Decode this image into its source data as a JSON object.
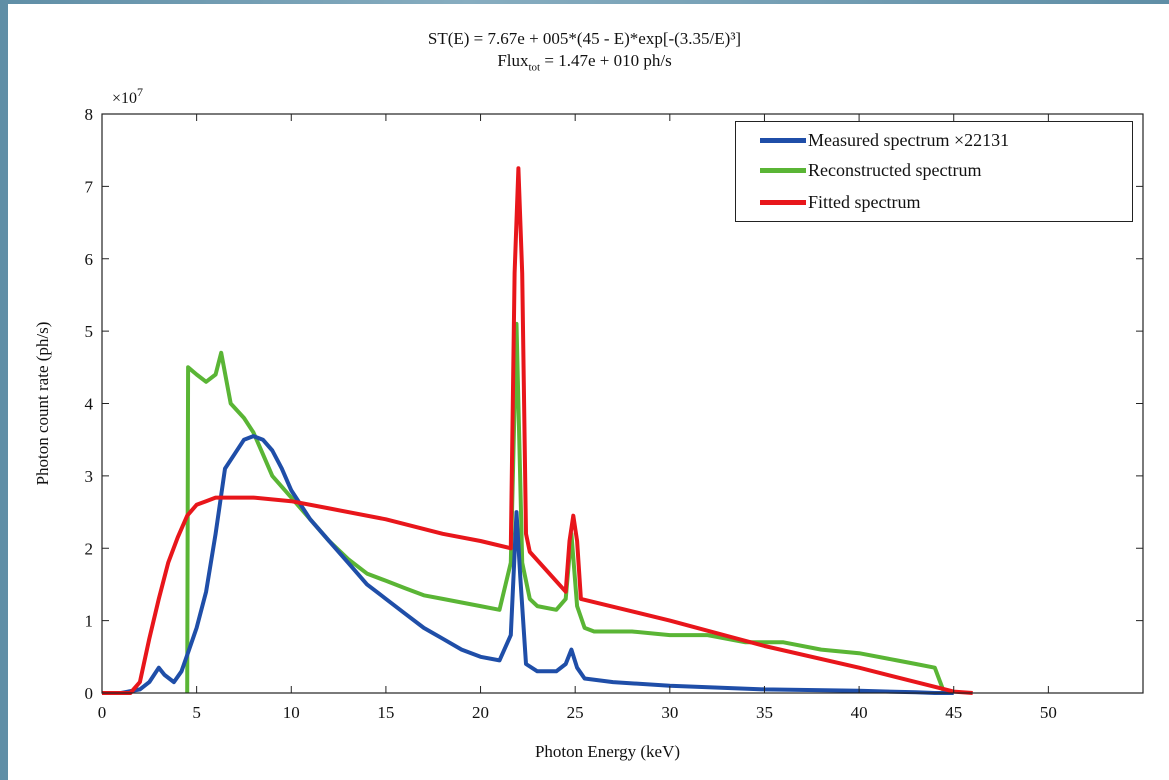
{
  "title_line1": "ST(E) = 7.67e + 005*(45 - E)*exp[-(3.35/E)³]",
  "title_line2_main": "Flux",
  "title_line2_sub": "tot",
  "title_line2_rest": " = 1.47e + 010 ph/s",
  "chart_data": {
    "type": "line",
    "title": "ST(E) = 7.67e + 005*(45 - E)*exp[-(3.35/E)³]  Flux_tot = 1.47e + 010 ph/s",
    "xlabel": "Photon Energy (keV)",
    "ylabel": "Photon count rate (ph/s)",
    "y_multiplier_label": "×10",
    "y_multiplier_exp": "7",
    "xlim": [
      0,
      55
    ],
    "ylim": [
      0,
      8
    ],
    "x_ticks": [
      0,
      5,
      10,
      15,
      20,
      25,
      30,
      35,
      40,
      45,
      50
    ],
    "y_ticks": [
      0,
      1,
      2,
      3,
      4,
      5,
      6,
      7,
      8
    ],
    "grid": false,
    "legend_position": "top-right",
    "series": [
      {
        "name": "Measured spectrum ×22131",
        "color": "#1f4ea8",
        "x": [
          0,
          1,
          2,
          2.5,
          3,
          3.3,
          3.8,
          4.2,
          4.6,
          5,
          5.5,
          6,
          6.5,
          7,
          7.5,
          8,
          8.5,
          9,
          9.5,
          10,
          11,
          12,
          13,
          14,
          15,
          16,
          17,
          18,
          19,
          20,
          21,
          21.6,
          21.9,
          22.1,
          22.4,
          23,
          24,
          24.5,
          24.8,
          25.1,
          25.5,
          27,
          30,
          35,
          40,
          43,
          44,
          45
        ],
        "y": [
          0,
          0,
          0.05,
          0.15,
          0.35,
          0.25,
          0.15,
          0.3,
          0.6,
          0.9,
          1.4,
          2.2,
          3.1,
          3.3,
          3.5,
          3.55,
          3.5,
          3.35,
          3.1,
          2.8,
          2.4,
          2.1,
          1.8,
          1.5,
          1.3,
          1.1,
          0.9,
          0.75,
          0.6,
          0.5,
          0.45,
          0.8,
          2.5,
          1.6,
          0.4,
          0.3,
          0.3,
          0.4,
          0.6,
          0.35,
          0.2,
          0.15,
          0.1,
          0.05,
          0.03,
          0.01,
          0,
          0
        ]
      },
      {
        "name": "Reconstructed spectrum",
        "color": "#5ab535",
        "x": [
          4.5,
          4.55,
          5,
          5.5,
          6,
          6.3,
          6.8,
          7.5,
          8,
          8.5,
          9,
          10,
          11,
          12,
          13,
          14,
          15,
          16,
          17,
          18,
          19,
          20,
          21,
          21.6,
          21.9,
          22.2,
          22.6,
          23,
          24,
          24.5,
          24.8,
          25.1,
          25.5,
          26,
          28,
          30,
          32,
          34,
          36,
          38,
          40,
          42,
          43,
          44,
          44.5
        ],
        "y": [
          0,
          4.5,
          4.4,
          4.3,
          4.4,
          4.7,
          4.0,
          3.8,
          3.6,
          3.3,
          3.0,
          2.7,
          2.4,
          2.1,
          1.85,
          1.65,
          1.55,
          1.45,
          1.35,
          1.3,
          1.25,
          1.2,
          1.15,
          1.8,
          5.1,
          1.8,
          1.3,
          1.2,
          1.15,
          1.3,
          2.2,
          1.2,
          0.9,
          0.85,
          0.85,
          0.8,
          0.8,
          0.7,
          0.7,
          0.6,
          0.55,
          0.45,
          0.4,
          0.35,
          0
        ]
      },
      {
        "name": "Fitted spectrum",
        "color": "#e8161b",
        "x": [
          0,
          1.5,
          2,
          2.5,
          3,
          3.5,
          4,
          4.5,
          5,
          5.5,
          6,
          7,
          8,
          10,
          12,
          15,
          18,
          20,
          21.6,
          21.8,
          22,
          22.2,
          22.4,
          22.6,
          24.5,
          24.7,
          24.9,
          25.1,
          25.3,
          30,
          35,
          40,
          45,
          46
        ],
        "y": [
          0,
          0,
          0.15,
          0.75,
          1.3,
          1.8,
          2.15,
          2.45,
          2.6,
          2.65,
          2.7,
          2.7,
          2.7,
          2.65,
          2.55,
          2.4,
          2.2,
          2.1,
          2.0,
          5.8,
          7.25,
          5.8,
          2.2,
          1.95,
          1.4,
          2.1,
          2.45,
          2.1,
          1.3,
          1.0,
          0.65,
          0.35,
          0.02,
          0
        ]
      }
    ]
  }
}
